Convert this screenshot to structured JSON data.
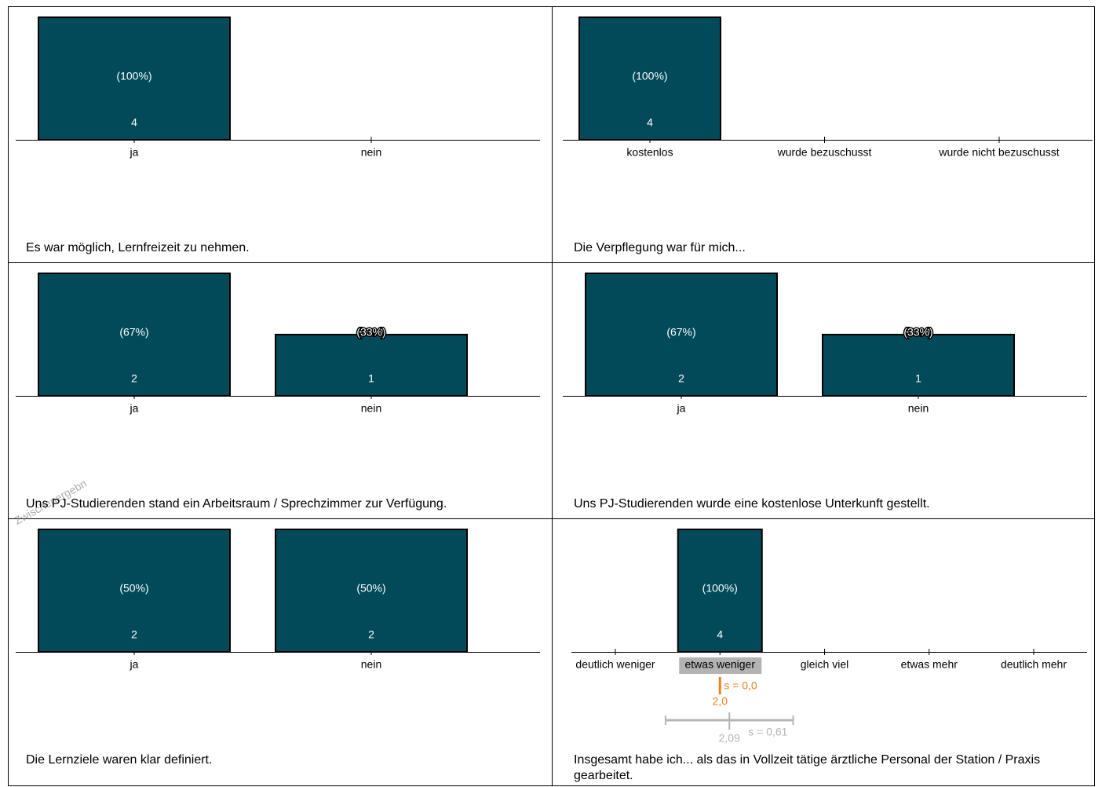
{
  "watermark": "Zwischenergebn",
  "chart_data": [
    {
      "type": "bar",
      "title": "Es war möglich, Lernfreizeit zu nehmen.",
      "categories": [
        "ja",
        "nein"
      ],
      "values": [
        4,
        0
      ],
      "share_labels": [
        "(100%)",
        null
      ],
      "ylim": [
        0,
        4
      ],
      "color": "#024a59"
    },
    {
      "type": "bar",
      "title": "Die Verpflegung war für mich...",
      "categories": [
        "kostenlos",
        "wurde bezuschusst",
        "wurde nicht bezuschusst"
      ],
      "values": [
        4,
        0,
        0
      ],
      "share_labels": [
        "(100%)",
        null,
        null
      ],
      "ylim": [
        0,
        4
      ],
      "color": "#024a59"
    },
    {
      "type": "bar",
      "title": "Uns PJ-Studierenden stand ein Arbeitsraum / Sprechzimmer zur Verfügung.",
      "categories": [
        "ja",
        "nein"
      ],
      "values": [
        2,
        1
      ],
      "share_labels": [
        "(67%)",
        "(33%)"
      ],
      "ylim": [
        0,
        2
      ],
      "color": "#024a59"
    },
    {
      "type": "bar",
      "title": "Uns PJ-Studierenden wurde eine kostenlose Unterkunft gestellt.",
      "categories": [
        "ja",
        "nein"
      ],
      "values": [
        2,
        1
      ],
      "share_labels": [
        "(67%)",
        "(33%)"
      ],
      "ylim": [
        0,
        2
      ],
      "color": "#024a59"
    },
    {
      "type": "bar",
      "title": "Die Lernziele waren klar definiert.",
      "categories": [
        "ja",
        "nein"
      ],
      "values": [
        2,
        2
      ],
      "share_labels": [
        "(50%)",
        "(50%)"
      ],
      "ylim": [
        0,
        2
      ],
      "color": "#024a59"
    },
    {
      "type": "bar",
      "title": "Insgesamt habe ich... als das in Vollzeit tätige ärztliche Personal der Station / Praxis gearbeitet.",
      "categories": [
        "deutlich weniger",
        "etwas weniger",
        "gleich viel",
        "etwas mehr",
        "deutlich mehr"
      ],
      "values": [
        0,
        4,
        0,
        0,
        0
      ],
      "share_labels": [
        null,
        "(100%)",
        null,
        null,
        null
      ],
      "ylim": [
        0,
        4
      ],
      "color": "#024a59",
      "highlight_category": 1,
      "stats": [
        {
          "mean": {
            "value": 2.0,
            "label": "2,0"
          },
          "sd": {
            "value": 0.0,
            "label": "s = 0,0"
          },
          "color": "#e8821e"
        },
        {
          "mean": {
            "value": 2.09,
            "label": "2,09"
          },
          "sd": {
            "value": 0.61,
            "label": "s = 0,61"
          },
          "color": "#b5b5b5"
        }
      ]
    }
  ]
}
